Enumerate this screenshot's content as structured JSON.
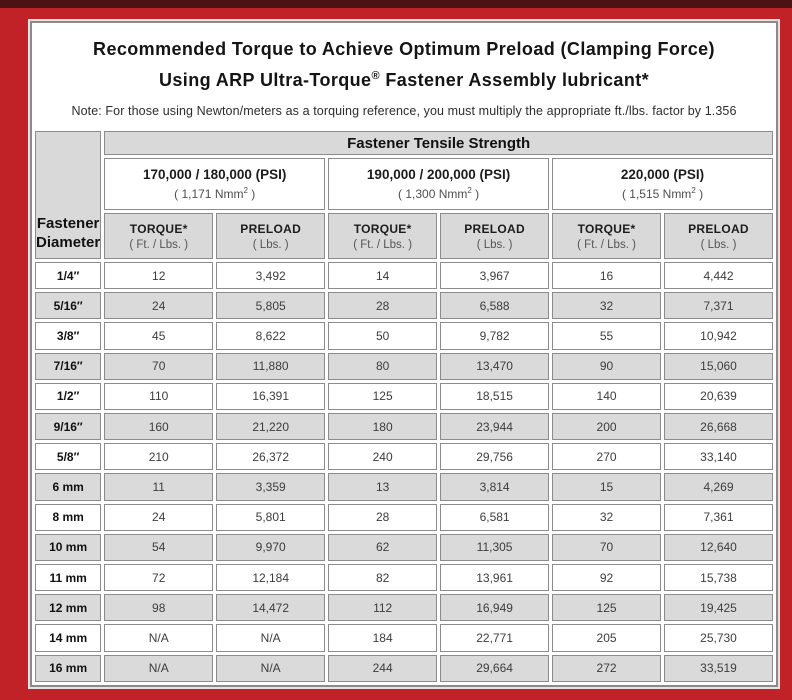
{
  "page": {
    "title_line1": "Recommended Torque to Achieve Optimum Preload (Clamping Force)",
    "title_line2_pre": "Using ARP Ultra-Torque",
    "title_reg_mark": "®",
    "title_line2_post": " Fastener Assembly lubricant*",
    "note": "Note: For those using Newton/meters as a torquing reference, you must multiply the appropriate ft./lbs. factor by 1.356"
  },
  "colors": {
    "frame_red": "#c12228",
    "top_strip_dark": "#4d1214",
    "header_gray": "#d9d9d9",
    "alt_row_gray": "#dadada",
    "border_gray": "#8c8c8c"
  },
  "table": {
    "corner_line1": "Fastener",
    "corner_line2": "Diameter",
    "tensile_header": "Fastener Tensile Strength",
    "groups": [
      {
        "psi": "170,000 / 180,000 (PSI)",
        "nmm": "( 1,171 Nmm",
        "nmm_sup": "2",
        "nmm_close": " )"
      },
      {
        "psi": "190,000 / 200,000 (PSI)",
        "nmm": "( 1,300 Nmm",
        "nmm_sup": "2",
        "nmm_close": " )"
      },
      {
        "psi": "220,000 (PSI)",
        "nmm": "( 1,515 Nmm",
        "nmm_sup": "2",
        "nmm_close": " )"
      }
    ],
    "torque_label": "TORQUE*",
    "torque_unit": "( Ft. / Lbs. )",
    "preload_label": "PRELOAD",
    "preload_unit": "( Lbs. )"
  },
  "chart_data": {
    "type": "table",
    "title": "Recommended Torque to Achieve Optimum Preload (Clamping Force) Using ARP Ultra-Torque Fastener Assembly lubricant",
    "columns": [
      "Fastener Diameter",
      "170,000 / 180,000 PSI Torque (Ft./Lbs.)",
      "170,000 / 180,000 PSI Preload (Lbs.)",
      "190,000 / 200,000 PSI Torque (Ft./Lbs.)",
      "190,000 / 200,000 PSI Preload (Lbs.)",
      "220,000 PSI Torque (Ft./Lbs.)",
      "220,000 PSI Preload (Lbs.)"
    ],
    "rows": [
      [
        "1/4″",
        "12",
        "3,492",
        "14",
        "3,967",
        "16",
        "4,442"
      ],
      [
        "5/16″",
        "24",
        "5,805",
        "28",
        "6,588",
        "32",
        "7,371"
      ],
      [
        "3/8″",
        "45",
        "8,622",
        "50",
        "9,782",
        "55",
        "10,942"
      ],
      [
        "7/16″",
        "70",
        "11,880",
        "80",
        "13,470",
        "90",
        "15,060"
      ],
      [
        "1/2″",
        "110",
        "16,391",
        "125",
        "18,515",
        "140",
        "20,639"
      ],
      [
        "9/16″",
        "160",
        "21,220",
        "180",
        "23,944",
        "200",
        "26,668"
      ],
      [
        "5/8″",
        "210",
        "26,372",
        "240",
        "29,756",
        "270",
        "33,140"
      ],
      [
        "6 mm",
        "11",
        "3,359",
        "13",
        "3,814",
        "15",
        "4,269"
      ],
      [
        "8 mm",
        "24",
        "5,801",
        "28",
        "6,581",
        "32",
        "7,361"
      ],
      [
        "10 mm",
        "54",
        "9,970",
        "62",
        "11,305",
        "70",
        "12,640"
      ],
      [
        "11 mm",
        "72",
        "12,184",
        "82",
        "13,961",
        "92",
        "15,738"
      ],
      [
        "12 mm",
        "98",
        "14,472",
        "112",
        "16,949",
        "125",
        "19,425"
      ],
      [
        "14 mm",
        "N/A",
        "N/A",
        "184",
        "22,771",
        "205",
        "25,730"
      ],
      [
        "16 mm",
        "N/A",
        "N/A",
        "244",
        "29,664",
        "272",
        "33,519"
      ]
    ]
  }
}
